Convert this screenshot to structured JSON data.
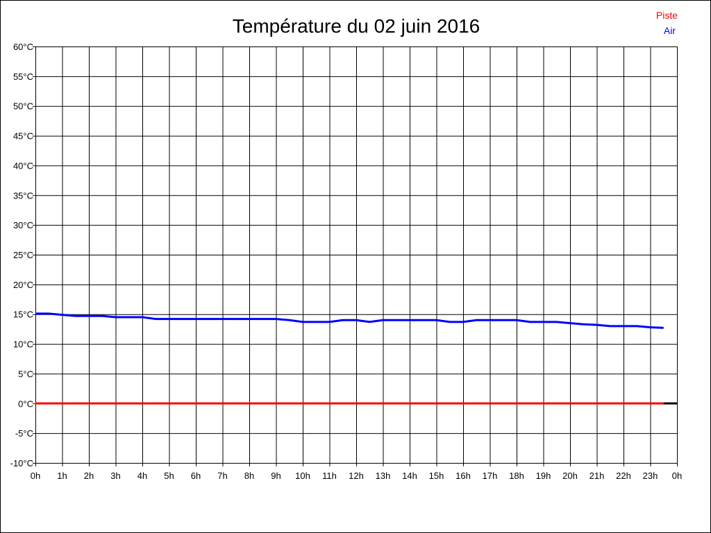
{
  "chart_data": {
    "type": "line",
    "title": "Température du 02 juin 2016",
    "xlim": [
      0,
      24
    ],
    "ylim": [
      -10,
      60
    ],
    "grid": true,
    "legend_placement": "top-right",
    "x_ticks": [
      "0h",
      "1h",
      "2h",
      "3h",
      "4h",
      "5h",
      "6h",
      "7h",
      "8h",
      "9h",
      "10h",
      "11h",
      "12h",
      "13h",
      "14h",
      "15h",
      "16h",
      "17h",
      "18h",
      "19h",
      "20h",
      "21h",
      "22h",
      "23h",
      "0h"
    ],
    "y_ticks": [
      "60°C",
      "55°C",
      "50°C",
      "45°C",
      "40°C",
      "35°C",
      "30°C",
      "25°C",
      "20°C",
      "15°C",
      "10°C",
      "5°C",
      "0°C",
      "-5°C",
      "-10°C"
    ],
    "x": [
      0,
      0.5,
      1,
      1.5,
      2,
      2.5,
      3,
      3.5,
      4,
      4.5,
      5,
      5.5,
      6,
      6.5,
      7,
      7.5,
      8,
      8.5,
      9,
      9.5,
      10,
      10.5,
      11,
      11.5,
      12,
      12.5,
      13,
      13.5,
      14,
      14.5,
      15,
      15.5,
      16,
      16.5,
      17,
      17.5,
      18,
      18.5,
      19,
      19.5,
      20,
      20.5,
      21,
      21.5,
      22,
      22.5,
      23,
      23.5
    ],
    "series": [
      {
        "name": "Piste",
        "color": "#ff0000",
        "values": [
          0,
          0,
          0,
          0,
          0,
          0,
          0,
          0,
          0,
          0,
          0,
          0,
          0,
          0,
          0,
          0,
          0,
          0,
          0,
          0,
          0,
          0,
          0,
          0,
          0,
          0,
          0,
          0,
          0,
          0,
          0,
          0,
          0,
          0,
          0,
          0,
          0,
          0,
          0,
          0,
          0,
          0,
          0,
          0,
          0,
          0,
          0,
          0
        ]
      },
      {
        "name": "Air",
        "color": "#0000ff",
        "values": [
          15.1,
          15.1,
          14.9,
          14.7,
          14.7,
          14.7,
          14.5,
          14.5,
          14.5,
          14.2,
          14.2,
          14.2,
          14.2,
          14.2,
          14.2,
          14.2,
          14.2,
          14.2,
          14.2,
          14.0,
          13.7,
          13.7,
          13.7,
          14.0,
          14.0,
          13.7,
          14.0,
          14.0,
          14.0,
          14.0,
          14.0,
          13.7,
          13.7,
          14.0,
          14.0,
          14.0,
          14.0,
          13.7,
          13.7,
          13.7,
          13.5,
          13.3,
          13.2,
          13.0,
          13.0,
          13.0,
          12.8,
          12.7
        ]
      }
    ]
  }
}
